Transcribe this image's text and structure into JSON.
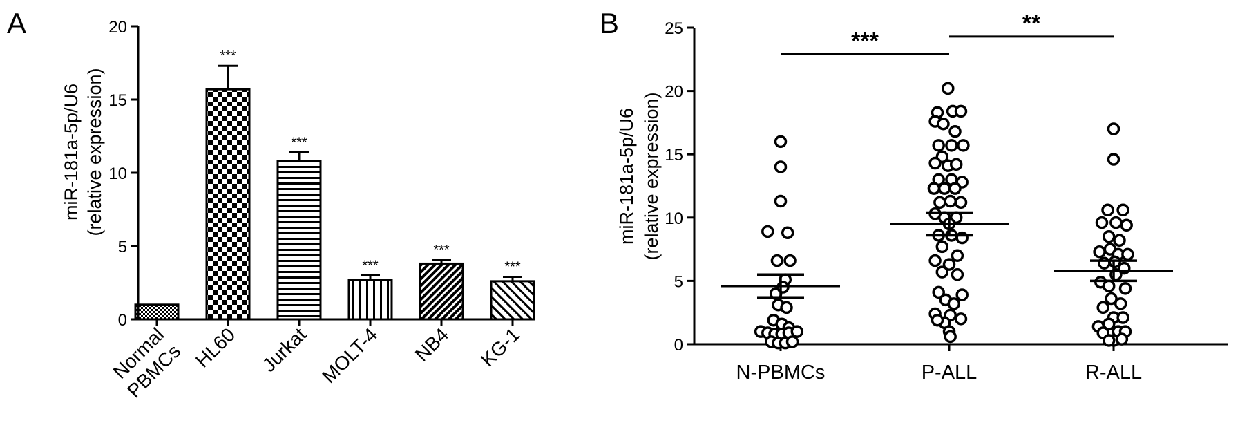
{
  "panels": {
    "a_letter": "A",
    "b_letter": "B"
  },
  "chart_data": [
    {
      "type": "bar",
      "panel": "A",
      "ylabel_line1": "miR-181a-5p/U6",
      "ylabel_line2": "(relative expression)",
      "ylim": [
        0,
        20
      ],
      "yticks": [
        "0",
        "5",
        "10",
        "15",
        "20"
      ],
      "categories": [
        {
          "label_line1": "Normal",
          "label_line2": "PBMCs"
        },
        {
          "label_line1": "HL60",
          "label_line2": ""
        },
        {
          "label_line1": "Jurkat",
          "label_line2": ""
        },
        {
          "label_line1": "MOLT-4",
          "label_line2": ""
        },
        {
          "label_line1": "NB4",
          "label_line2": ""
        },
        {
          "label_line1": "KG-1",
          "label_line2": ""
        }
      ],
      "values": [
        1.0,
        15.7,
        10.8,
        2.7,
        3.8,
        2.6
      ],
      "errors": [
        0,
        1.6,
        0.6,
        0.3,
        0.25,
        0.3
      ],
      "patterns": [
        "pat-smallcheck",
        "pat-check",
        "pat-hlines",
        "pat-vlines",
        "pat-diag-dense",
        "pat-diag-sparse"
      ],
      "significance": [
        "",
        "***",
        "***",
        "***",
        "***",
        "***"
      ]
    },
    {
      "type": "scatter",
      "panel": "B",
      "ylabel_line1": "miR-181a-5p/U6",
      "ylabel_line2": "(relative expression)",
      "ylim": [
        0,
        25
      ],
      "yticks": [
        "0",
        "5",
        "10",
        "15",
        "20",
        "25"
      ],
      "categories": [
        "N-PBMCs",
        "P-ALL",
        "R-ALL"
      ],
      "series": [
        {
          "group": "N-PBMCs",
          "mean": 4.6,
          "sem_low": 3.7,
          "sem_high": 5.5,
          "points": [
            [
              0,
              16.0
            ],
            [
              0,
              14.0
            ],
            [
              0,
              11.3
            ],
            [
              -0.55,
              8.9
            ],
            [
              0.3,
              8.8
            ],
            [
              -0.15,
              6.6
            ],
            [
              0.4,
              6.6
            ],
            [
              0.2,
              5.1
            ],
            [
              -0.2,
              4.0
            ],
            [
              0.1,
              4.5
            ],
            [
              -0.1,
              3.1
            ],
            [
              0.25,
              2.9
            ],
            [
              -0.3,
              1.9
            ],
            [
              0.05,
              1.6
            ],
            [
              0.35,
              1.3
            ],
            [
              -0.85,
              1.0
            ],
            [
              -0.55,
              0.9
            ],
            [
              -0.25,
              0.8
            ],
            [
              0.05,
              0.8
            ],
            [
              0.35,
              0.9
            ],
            [
              0.7,
              1.0
            ],
            [
              -0.4,
              0.2
            ],
            [
              -0.1,
              0.1
            ],
            [
              0.2,
              0.1
            ],
            [
              0.5,
              0.2
            ]
          ]
        },
        {
          "group": "P-ALL",
          "mean": 9.5,
          "sem_low": 8.6,
          "sem_high": 10.4,
          "points": [
            [
              -0.05,
              20.2
            ],
            [
              -0.5,
              18.3
            ],
            [
              0.15,
              18.4
            ],
            [
              0.5,
              18.4
            ],
            [
              -0.6,
              17.6
            ],
            [
              -0.25,
              17.4
            ],
            [
              0.25,
              16.8
            ],
            [
              -0.45,
              15.7
            ],
            [
              0.1,
              15.7
            ],
            [
              0.6,
              15.7
            ],
            [
              -0.3,
              14.8
            ],
            [
              -0.6,
              14.3
            ],
            [
              -0.05,
              14.1
            ],
            [
              0.3,
              14.2
            ],
            [
              -0.45,
              13.0
            ],
            [
              0.1,
              13.0
            ],
            [
              0.55,
              12.8
            ],
            [
              -0.65,
              12.3
            ],
            [
              -0.2,
              12.3
            ],
            [
              0.25,
              12.3
            ],
            [
              -0.4,
              11.2
            ],
            [
              0.05,
              11.3
            ],
            [
              0.5,
              11.2
            ],
            [
              -0.6,
              10.3
            ],
            [
              -0.2,
              10.0
            ],
            [
              0.3,
              10.0
            ],
            [
              0.0,
              9.5
            ],
            [
              -0.45,
              8.6
            ],
            [
              0.1,
              8.6
            ],
            [
              0.55,
              8.4
            ],
            [
              -0.3,
              7.7
            ],
            [
              0.35,
              7.0
            ],
            [
              -0.6,
              6.6
            ],
            [
              0.0,
              6.3
            ],
            [
              -0.3,
              5.7
            ],
            [
              0.35,
              5.5
            ],
            [
              -0.45,
              4.1
            ],
            [
              0.55,
              3.9
            ],
            [
              -0.15,
              3.5
            ],
            [
              0.2,
              3.2
            ],
            [
              -0.6,
              2.4
            ],
            [
              0.05,
              2.3
            ],
            [
              0.5,
              2.0
            ],
            [
              -0.2,
              1.7
            ],
            [
              -0.5,
              1.9
            ],
            [
              0.0,
              1.0
            ],
            [
              0.05,
              0.6
            ]
          ]
        },
        {
          "group": "R-ALL",
          "mean": 5.8,
          "sem_low": 5.0,
          "sem_high": 6.6,
          "points": [
            [
              0.0,
              17.0
            ],
            [
              0.0,
              14.6
            ],
            [
              -0.25,
              10.6
            ],
            [
              0.4,
              10.6
            ],
            [
              -0.5,
              9.6
            ],
            [
              0.1,
              9.6
            ],
            [
              0.55,
              9.4
            ],
            [
              -0.2,
              8.5
            ],
            [
              0.25,
              8.2
            ],
            [
              -0.6,
              7.3
            ],
            [
              -0.15,
              7.5
            ],
            [
              0.2,
              7.1
            ],
            [
              0.6,
              7.1
            ],
            [
              -0.4,
              6.4
            ],
            [
              0.05,
              6.5
            ],
            [
              0.45,
              6.0
            ],
            [
              0.1,
              5.5
            ],
            [
              -0.55,
              4.9
            ],
            [
              -0.2,
              4.6
            ],
            [
              0.5,
              4.4
            ],
            [
              -0.1,
              3.6
            ],
            [
              0.3,
              3.2
            ],
            [
              -0.45,
              2.9
            ],
            [
              0.0,
              2.1
            ],
            [
              0.4,
              2.1
            ],
            [
              -0.65,
              1.4
            ],
            [
              -0.2,
              1.6
            ],
            [
              0.2,
              1.0
            ],
            [
              -0.45,
              0.9
            ],
            [
              0.5,
              1.0
            ],
            [
              0.0,
              0.3
            ],
            [
              -0.2,
              0.3
            ],
            [
              0.35,
              0.4
            ]
          ]
        }
      ],
      "significance": [
        {
          "label": "***",
          "from": "N-PBMCs",
          "to": "P-ALL",
          "y": 22.9
        },
        {
          "label": "**",
          "from": "P-ALL",
          "to": "R-ALL",
          "y": 24.3
        }
      ]
    }
  ]
}
